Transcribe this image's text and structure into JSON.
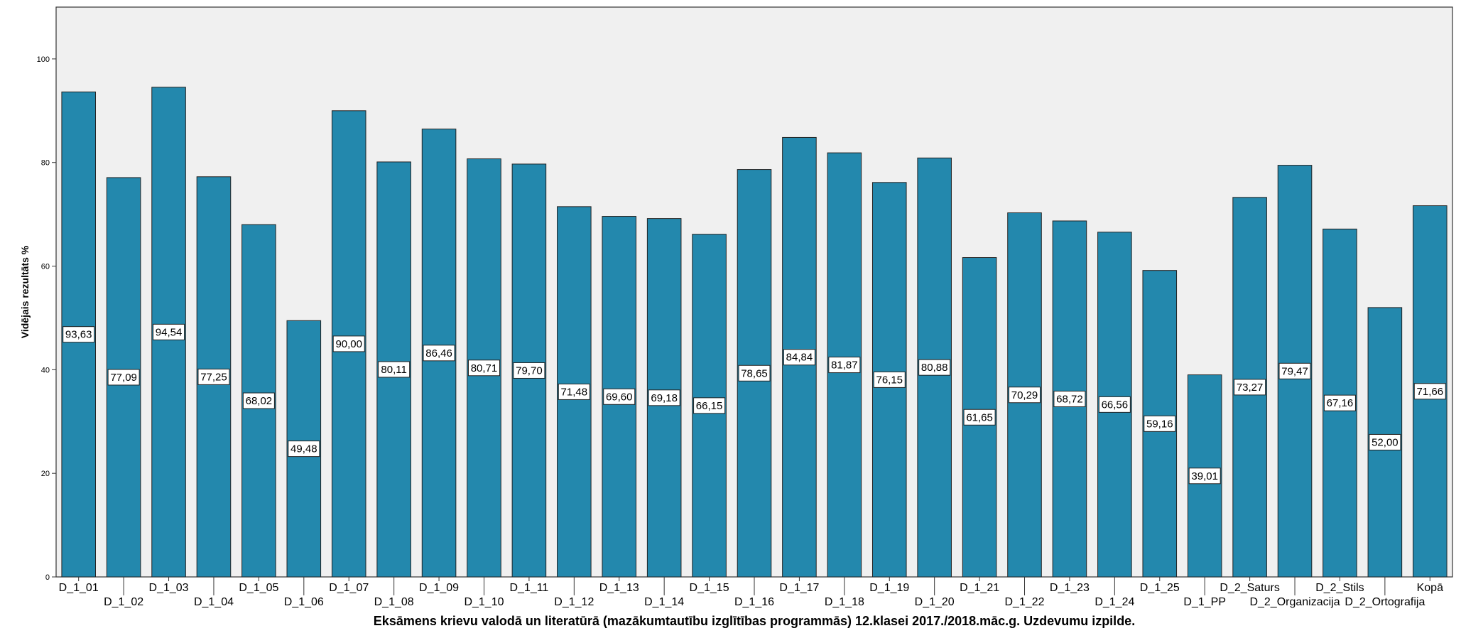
{
  "chart_data": {
    "type": "bar",
    "title": "",
    "xlabel": "Eksāmens krievu valodā un literatūrā (mazākumtautību izglītības programmās) 12.klasei 2017./2018.māc.g. Uzdevumu izpilde.",
    "ylabel": "Vidējais rezultāts %",
    "ylim": [
      0,
      110
    ],
    "yticks": [
      0,
      20,
      40,
      60,
      80,
      100
    ],
    "grid": false,
    "bar_color": "#2388ad",
    "plot_background": "#f0f0f0",
    "categories": [
      "D_1_01",
      "D_1_02",
      "D_1_03",
      "D_1_04",
      "D_1_05",
      "D_1_06",
      "D_1_07",
      "D_1_08",
      "D_1_09",
      "D_1_10",
      "D_1_11",
      "D_1_12",
      "D_1_13",
      "D_1_14",
      "D_1_15",
      "D_1_16",
      "D_1_17",
      "D_1_18",
      "D_1_19",
      "D_1_20",
      "D_1_21",
      "D_1_22",
      "D_1_23",
      "D_1_24",
      "D_1_25",
      "D_1_PP",
      "D_2_Saturs",
      "D_2_Organizacija",
      "D_2_Stils",
      "D_2_Ortografija",
      "Kopā"
    ],
    "values": [
      93.63,
      77.09,
      94.54,
      77.25,
      68.02,
      49.48,
      90.0,
      80.11,
      86.46,
      80.71,
      79.7,
      71.48,
      69.6,
      69.18,
      66.15,
      78.65,
      84.84,
      81.87,
      76.15,
      80.88,
      61.65,
      70.29,
      68.72,
      66.56,
      59.16,
      39.01,
      73.27,
      79.47,
      67.16,
      52.0,
      71.66
    ],
    "data_labels": [
      "93,63",
      "77,09",
      "94,54",
      "77,25",
      "68,02",
      "49,48",
      "90,00",
      "80,11",
      "86,46",
      "80,71",
      "79,70",
      "71,48",
      "69,60",
      "69,18",
      "66,15",
      "78,65",
      "84,84",
      "81,87",
      "76,15",
      "80,88",
      "61,65",
      "70,29",
      "68,72",
      "66,56",
      "59,16",
      "39,01",
      "73,27",
      "79,47",
      "67,16",
      "52,00",
      "71,66"
    ]
  }
}
